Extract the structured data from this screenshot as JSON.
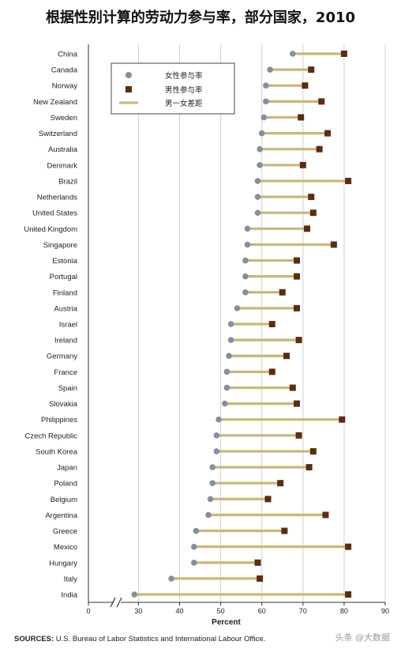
{
  "title": "根据性别计算的劳动力参与率，部分国家，2010",
  "source": {
    "label": "SOURCES:",
    "text": "U.S. Bureau of Labor Statistics and International Labour Office."
  },
  "watermark": "头条 @大数据",
  "colors": {
    "female": "#8a8d9c",
    "male": "#5a2d12",
    "gap": "#c8b77a",
    "grid": "#d0d0d0",
    "axis": "#333333"
  },
  "chart_data": {
    "type": "dot",
    "title": "根据性别计算的劳动力参与率，部分国家，2010",
    "xlabel": "Percent",
    "ylabel": "",
    "xlim": [
      0,
      90
    ],
    "axis_break": [
      5,
      28
    ],
    "x_ticks": [
      0,
      30,
      40,
      50,
      60,
      70,
      80,
      90
    ],
    "grid": true,
    "legend_position": "top-left",
    "legend": [
      {
        "name": "女性参与率",
        "marker": "circle"
      },
      {
        "name": "男性参与率",
        "marker": "square"
      },
      {
        "name": "男一女差距",
        "marker": "line"
      }
    ],
    "categories": [
      "China",
      "Canada",
      "Norway",
      "New Zealand",
      "Sweden",
      "Switzerland",
      "Australia",
      "Denmark",
      "Brazil",
      "Netherlands",
      "United States",
      "United Kingdom",
      "Singapore",
      "Estonia",
      "Portugal",
      "Finland",
      "Austria",
      "Israel",
      "Ireland",
      "Germany",
      "France",
      "Spain",
      "Slovakia",
      "Philippines",
      "Czech Republic",
      "South Korea",
      "Japan",
      "Poland",
      "Belgium",
      "Argentina",
      "Greece",
      "Mexico",
      "Hungary",
      "Italy",
      "India"
    ],
    "series": [
      {
        "name": "女性参与率",
        "values": [
          67.5,
          62,
          61,
          61,
          60.5,
          60,
          59.5,
          59.5,
          59,
          59,
          59,
          56.5,
          56.5,
          56,
          56,
          56,
          54,
          52.5,
          52.5,
          52,
          51.5,
          51.5,
          51,
          49.5,
          49,
          49,
          48,
          48,
          47.5,
          47,
          44,
          43.5,
          43.5,
          38,
          29
        ]
      },
      {
        "name": "男性参与率",
        "values": [
          80,
          72,
          70.5,
          74.5,
          69.5,
          76,
          74,
          70,
          81,
          72,
          72.5,
          71,
          77.5,
          68.5,
          68.5,
          65,
          68.5,
          62.5,
          69,
          66,
          62.5,
          67.5,
          68.5,
          79.5,
          69,
          72.5,
          71.5,
          64.5,
          61.5,
          75.5,
          65.5,
          81,
          59,
          59.5,
          81
        ]
      }
    ]
  }
}
